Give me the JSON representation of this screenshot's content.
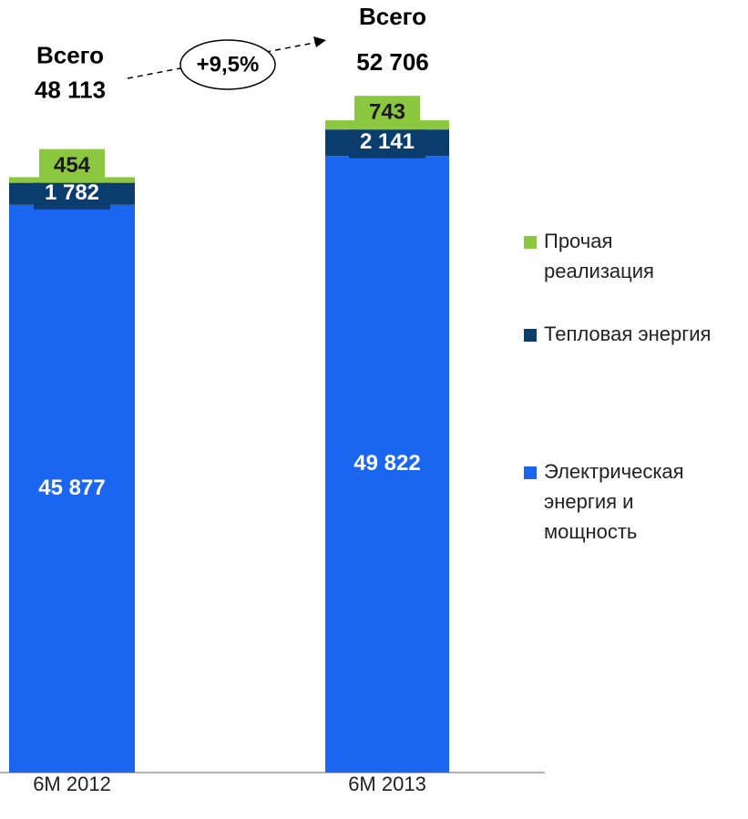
{
  "chart_data": {
    "type": "stacked_bar",
    "categories": [
      "6M 2012",
      "6M 2013"
    ],
    "series": [
      {
        "name": "Электрическая энергия и мощность",
        "color": "#1a66f0",
        "values": [
          45877,
          49822
        ],
        "value_labels": [
          "45 877",
          "49 822"
        ]
      },
      {
        "name": "Тепловая энергия",
        "color": "#0b3c6e",
        "values": [
          1782,
          2141
        ],
        "value_labels": [
          "1 782",
          "2 141"
        ]
      },
      {
        "name": "Прочая реализация",
        "color": "#8cc83f",
        "values": [
          454,
          743
        ],
        "value_labels": [
          "454",
          "743"
        ]
      }
    ],
    "total_title": "Всего",
    "totals": [
      48113,
      52706
    ],
    "total_labels": [
      "48 113",
      "52 706"
    ],
    "growth_label": "+9,5%",
    "ylim": [
      0,
      60000
    ]
  }
}
